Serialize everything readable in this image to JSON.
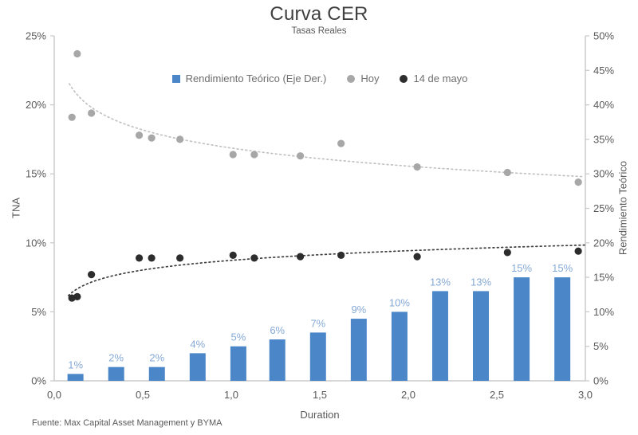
{
  "chart_data": {
    "type": "combo",
    "title": "Curva CER",
    "subtitle": "Tasas Reales",
    "xlabel": "Duration",
    "source": "Fuente: Max Capital Asset Management y BYMA",
    "xlim": [
      0,
      3
    ],
    "x_tick_values": [
      0,
      0.5,
      1,
      1.5,
      2,
      2.5,
      3
    ],
    "x_tick_labels": [
      "0,0",
      "0,5",
      "1,0",
      "1,5",
      "2,0",
      "2,5",
      "3,0"
    ],
    "left_axis": {
      "label": "TNA",
      "lim": [
        0,
        25
      ],
      "ticks": [
        0,
        5,
        10,
        15,
        20,
        25
      ],
      "tick_labels": [
        "0%",
        "5%",
        "10%",
        "15%",
        "20%",
        "25%"
      ]
    },
    "right_axis": {
      "label": "Rendimiento Teórico",
      "lim": [
        0,
        50
      ],
      "ticks": [
        0,
        5,
        10,
        15,
        20,
        25,
        30,
        35,
        40,
        45,
        50
      ],
      "tick_labels": [
        "0%",
        "5%",
        "10%",
        "15%",
        "20%",
        "25%",
        "30%",
        "35%",
        "40%",
        "45%",
        "50%"
      ]
    },
    "colors": {
      "axis_line": "#cbcbcb",
      "tick_text": "#595959",
      "title_text": "#404040"
    },
    "series": [
      {
        "name": "Rendimiento Teórico (Eje Der.)",
        "type": "bar",
        "axis": "right",
        "color": "#4b86c8",
        "label_color": "#85a9d6",
        "x": [
          0.12,
          0.35,
          0.58,
          0.81,
          1.04,
          1.26,
          1.49,
          1.72,
          1.95,
          2.18,
          2.41,
          2.64,
          2.87
        ],
        "values": [
          1,
          2,
          2,
          4,
          5,
          6,
          7,
          9,
          10,
          13,
          13,
          15,
          15
        ],
        "labels": [
          "1%",
          "2%",
          "2%",
          "4%",
          "5%",
          "6%",
          "7%",
          "9%",
          "10%",
          "13%",
          "13%",
          "15%",
          "15%"
        ]
      },
      {
        "name": "Hoy",
        "type": "scatter",
        "axis": "left",
        "color": "#a7a7a7",
        "x": [
          0.1,
          0.13,
          0.21,
          0.48,
          0.55,
          0.71,
          1.01,
          1.13,
          1.39,
          1.62,
          2.05,
          2.56,
          2.96
        ],
        "values": [
          19.1,
          23.7,
          19.4,
          17.8,
          17.6,
          17.5,
          16.4,
          16.4,
          16.3,
          17.2,
          15.5,
          15.1,
          14.4
        ],
        "trendline": {
          "form": "log",
          "a": 16.87,
          "b": -1.89,
          "x_start": 0.085,
          "color": "#c2c2c2"
        }
      },
      {
        "name": "14 de mayo",
        "type": "scatter",
        "axis": "left",
        "color": "#2d2d2d",
        "x": [
          0.1,
          0.13,
          0.21,
          0.48,
          0.55,
          0.71,
          1.01,
          1.13,
          1.39,
          1.62,
          2.05,
          2.56,
          2.96
        ],
        "values": [
          6.0,
          6.1,
          7.7,
          8.9,
          8.9,
          8.9,
          9.1,
          8.9,
          9.0,
          9.1,
          9.0,
          9.3,
          9.4
        ],
        "trendline": {
          "form": "log",
          "a": 8.73,
          "b": 1.01,
          "x_start": 0.08,
          "color": "#3f3f3f"
        }
      }
    ]
  }
}
